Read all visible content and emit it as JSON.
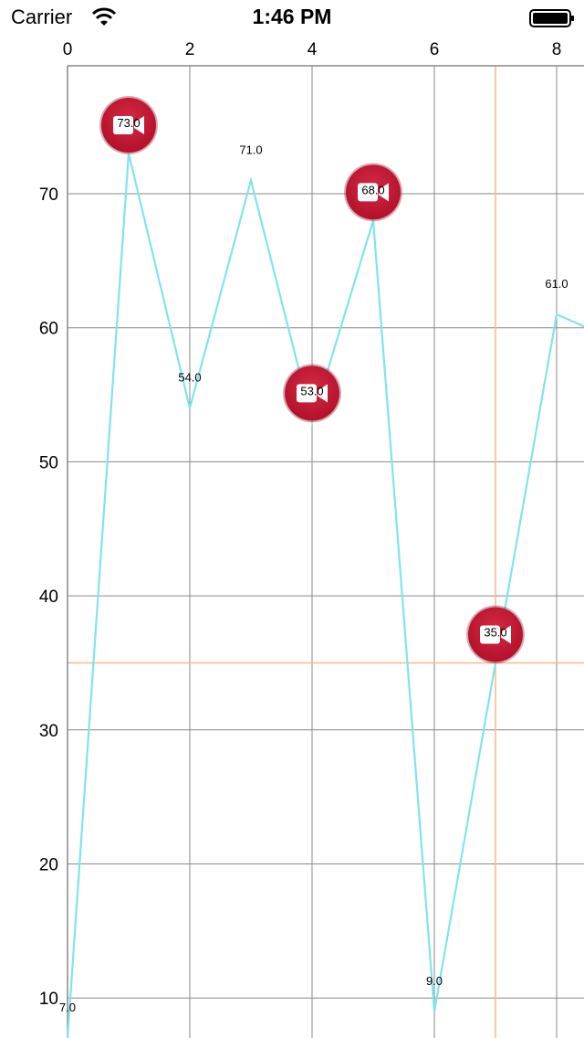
{
  "status_bar": {
    "carrier": "Carrier",
    "time": "1:46 PM"
  },
  "colors": {
    "line": "#7fe4f0",
    "grid": "#888888",
    "highlight": "#f5b98a",
    "marker": "#b3102a"
  },
  "chart_data": {
    "type": "line",
    "x": [
      0,
      1,
      2,
      3,
      4,
      5,
      6,
      7,
      8,
      9
    ],
    "series": [
      {
        "values": [
          7.0,
          73.0,
          54.0,
          71.0,
          53.0,
          68.0,
          9.0,
          35.0,
          61.0,
          59.0
        ],
        "labels": [
          "7.0",
          "73.0",
          "54.0",
          "71.0",
          "53.0",
          "68.0",
          "9.0",
          "35.0",
          "61.0",
          ""
        ]
      }
    ],
    "markers": [
      {
        "x": 1,
        "y": 73.0,
        "icon": "video-camera-icon"
      },
      {
        "x": 4,
        "y": 53.0,
        "icon": "video-camera-icon"
      },
      {
        "x": 5,
        "y": 68.0,
        "icon": "video-camera-icon"
      },
      {
        "x": 7,
        "y": 35.0,
        "icon": "video-camera-icon"
      }
    ],
    "highlight": {
      "x": 7,
      "y": 35.0
    },
    "x_ticks": [
      "0",
      "2",
      "4",
      "6",
      "8"
    ],
    "x_tick_values": [
      0,
      2,
      4,
      6,
      8
    ],
    "y_ticks": [
      "10",
      "20",
      "30",
      "40",
      "50",
      "60",
      "70"
    ],
    "y_tick_values": [
      10,
      20,
      30,
      40,
      50,
      60,
      70
    ],
    "xaxis_position": "top",
    "grid": true
  }
}
